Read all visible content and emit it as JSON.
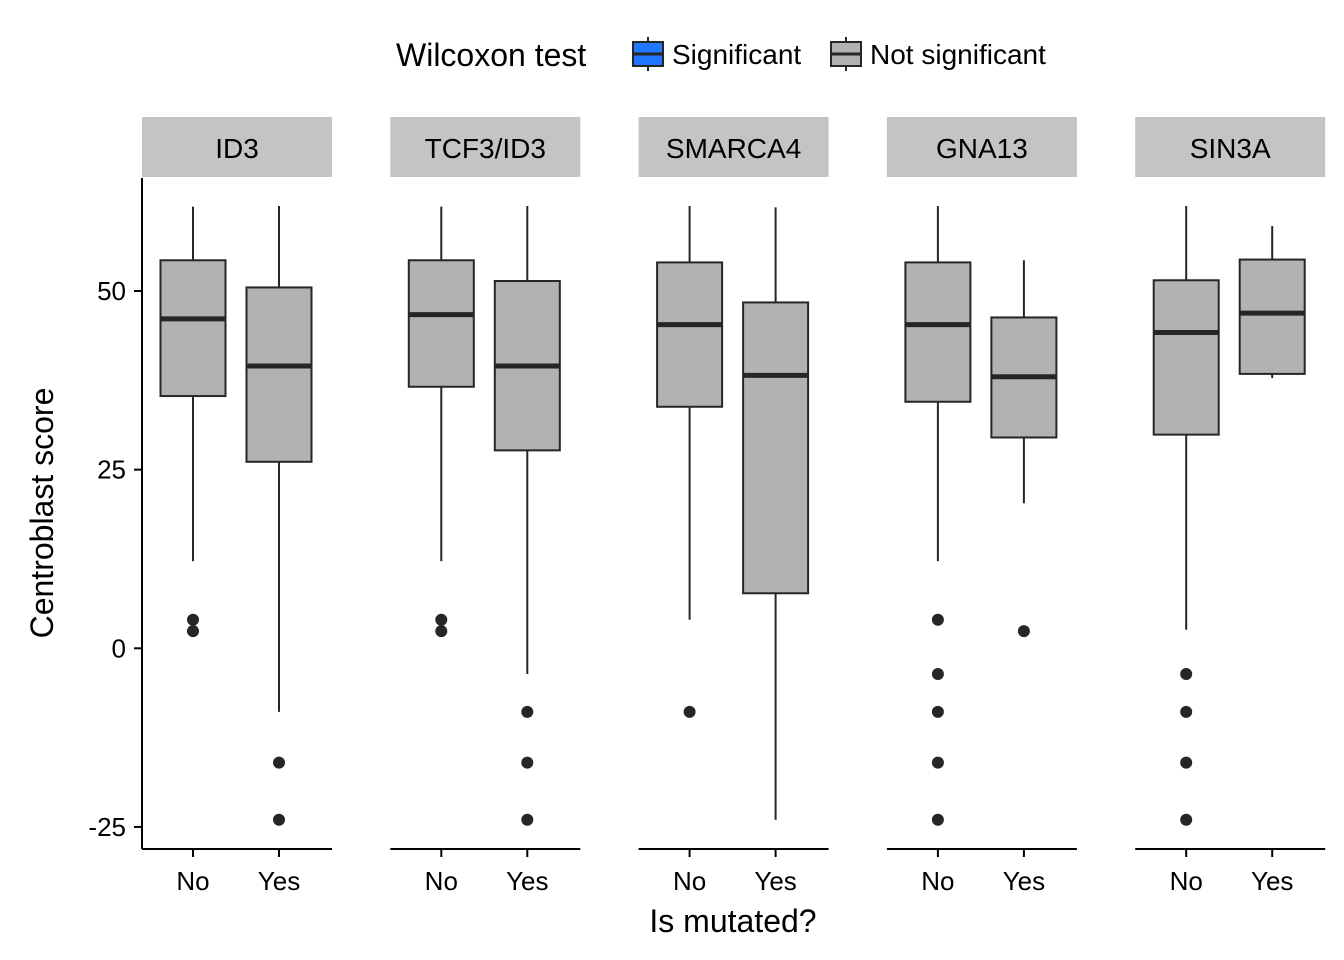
{
  "chart_data": {
    "type": "boxplot",
    "xlabel": "Is mutated?",
    "ylabel": "Centroblast score",
    "ylim": [
      -28,
      66
    ],
    "yticks": [
      -25,
      0,
      25,
      50
    ],
    "categories": [
      "No",
      "Yes"
    ],
    "legend": {
      "title": "Wilcoxon test",
      "position": "top",
      "entries": [
        {
          "label": "Significant",
          "color": "#1f78ff"
        },
        {
          "label": "Not significant",
          "color": "#b2b2b2"
        }
      ]
    },
    "panels": [
      {
        "title": "ID3",
        "status": "Not significant",
        "boxes": [
          {
            "group": "No",
            "whisker_low": 12.2,
            "q1": 35.3,
            "median": 46.1,
            "q3": 54.3,
            "whisker_high": 61.8,
            "outliers": [
              4.0,
              2.4
            ]
          },
          {
            "group": "Yes",
            "whisker_low": -8.9,
            "q1": 26.1,
            "median": 39.5,
            "q3": 50.5,
            "whisker_high": 61.9,
            "outliers": [
              -16.0,
              -24.0
            ]
          }
        ]
      },
      {
        "title": "TCF3/ID3",
        "status": "Not significant",
        "boxes": [
          {
            "group": "No",
            "whisker_low": 12.2,
            "q1": 36.6,
            "median": 46.7,
            "q3": 54.3,
            "whisker_high": 61.8,
            "outliers": [
              4.0,
              2.4
            ]
          },
          {
            "group": "Yes",
            "whisker_low": -3.6,
            "q1": 27.7,
            "median": 39.5,
            "q3": 51.4,
            "whisker_high": 61.9,
            "outliers": [
              -8.9,
              -16.0,
              -24.0
            ]
          }
        ]
      },
      {
        "title": "SMARCA4",
        "status": "Not significant",
        "boxes": [
          {
            "group": "No",
            "whisker_low": 4.0,
            "q1": 33.8,
            "median": 45.3,
            "q3": 54.0,
            "whisker_high": 61.9,
            "outliers": [
              -8.9
            ]
          },
          {
            "group": "Yes",
            "whisker_low": -24.0,
            "q1": 7.7,
            "median": 38.2,
            "q3": 48.4,
            "whisker_high": 61.7,
            "outliers": []
          }
        ]
      },
      {
        "title": "GNA13",
        "status": "Not significant",
        "boxes": [
          {
            "group": "No",
            "whisker_low": 12.2,
            "q1": 34.5,
            "median": 45.3,
            "q3": 54.0,
            "whisker_high": 61.9,
            "outliers": [
              4.0,
              -3.6,
              -8.9,
              -16.0,
              -24.0
            ]
          },
          {
            "group": "Yes",
            "whisker_low": 20.3,
            "q1": 29.5,
            "median": 38.0,
            "q3": 46.3,
            "whisker_high": 54.3,
            "outliers": [
              2.4
            ]
          }
        ]
      },
      {
        "title": "SIN3A",
        "status": "Not significant",
        "boxes": [
          {
            "group": "No",
            "whisker_low": 2.6,
            "q1": 29.9,
            "median": 44.2,
            "q3": 51.5,
            "whisker_high": 61.9,
            "outliers": [
              -3.6,
              -8.9,
              -16.0,
              -24.0
            ]
          },
          {
            "group": "Yes",
            "whisker_low": 37.8,
            "q1": 38.4,
            "median": 46.9,
            "q3": 54.4,
            "whisker_high": 59.1,
            "outliers": []
          }
        ]
      }
    ],
    "colors": {
      "significant": "#1f78ff",
      "not_significant": "#b2b2b2",
      "strip": "#c4c4c4",
      "stroke": "#262626",
      "axis": "#000000"
    }
  }
}
